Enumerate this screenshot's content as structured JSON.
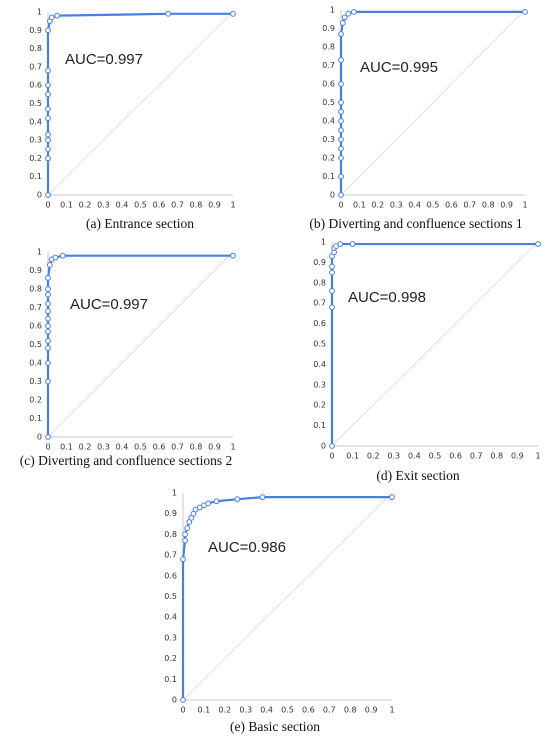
{
  "chart_data": [
    {
      "type": "line",
      "annotation": "AUC=0.997",
      "caption": "(a) Entrance section",
      "x": [
        0,
        0,
        0,
        0,
        0,
        0,
        0,
        0,
        0,
        0,
        0,
        0.01,
        0.02,
        0.05,
        0.65,
        1
      ],
      "series": [
        {
          "color": "#4a7fe0",
          "values": [
            0,
            0.2,
            0.25,
            0.3,
            0.33,
            0.42,
            0.47,
            0.55,
            0.6,
            0.68,
            0.9,
            0.95,
            0.97,
            0.98,
            0.99,
            0.99
          ]
        }
      ],
      "xlim": [
        0,
        1
      ],
      "ylim": [
        0,
        1
      ],
      "xticks": [
        0,
        0.1,
        0.2,
        0.3,
        0.4,
        0.5,
        0.6,
        0.7,
        0.8,
        0.9,
        1
      ],
      "yticks": [
        0,
        0.1,
        0.2,
        0.3,
        0.4,
        0.5,
        0.6,
        0.7,
        0.8,
        0.9,
        1
      ],
      "grid": false
    },
    {
      "type": "line",
      "annotation": "AUC=0.995",
      "caption": "(b) Diverting and confluence sections 1",
      "x": [
        0,
        0,
        0,
        0,
        0,
        0,
        0,
        0,
        0,
        0,
        0,
        0,
        0.01,
        0.02,
        0.04,
        0.07,
        1
      ],
      "series": [
        {
          "color": "#4a7fe0",
          "values": [
            0,
            0.1,
            0.2,
            0.25,
            0.3,
            0.35,
            0.4,
            0.45,
            0.5,
            0.6,
            0.73,
            0.87,
            0.93,
            0.96,
            0.98,
            0.99,
            0.99
          ]
        }
      ],
      "xlim": [
        0,
        1
      ],
      "ylim": [
        0,
        1
      ],
      "xticks": [
        0,
        0.1,
        0.2,
        0.3,
        0.4,
        0.5,
        0.6,
        0.7,
        0.8,
        0.9,
        1
      ],
      "yticks": [
        0,
        0.1,
        0.2,
        0.3,
        0.4,
        0.5,
        0.6,
        0.7,
        0.8,
        0.9,
        1
      ],
      "grid": false
    },
    {
      "type": "line",
      "annotation": "AUC=0.997",
      "caption": "(c) Diverting and confluence sections 2",
      "x": [
        0,
        0,
        0,
        0,
        0,
        0,
        0,
        0,
        0,
        0,
        0,
        0,
        0,
        0.01,
        0.02,
        0.04,
        0.08,
        1
      ],
      "series": [
        {
          "color": "#4a7fe0",
          "values": [
            0,
            0.3,
            0.4,
            0.48,
            0.52,
            0.57,
            0.6,
            0.64,
            0.68,
            0.72,
            0.77,
            0.8,
            0.86,
            0.93,
            0.96,
            0.97,
            0.98,
            0.98
          ]
        }
      ],
      "xlim": [
        0,
        1
      ],
      "ylim": [
        0,
        1
      ],
      "xticks": [
        0,
        0.1,
        0.2,
        0.3,
        0.4,
        0.5,
        0.6,
        0.7,
        0.8,
        0.9,
        1
      ],
      "yticks": [
        0,
        0.1,
        0.2,
        0.3,
        0.4,
        0.5,
        0.6,
        0.7,
        0.8,
        0.9,
        1
      ],
      "grid": false
    },
    {
      "type": "line",
      "annotation": "AUC=0.998",
      "caption": "(d) Exit section",
      "x": [
        0,
        0,
        0,
        0,
        0,
        0,
        0.01,
        0.01,
        0.02,
        0.04,
        0.1,
        1
      ],
      "series": [
        {
          "color": "#4a7fe0",
          "values": [
            0,
            0.68,
            0.76,
            0.85,
            0.88,
            0.93,
            0.95,
            0.97,
            0.98,
            0.99,
            0.99,
            0.99
          ]
        }
      ],
      "xlim": [
        0,
        1
      ],
      "ylim": [
        0,
        1
      ],
      "xticks": [
        0,
        0.1,
        0.2,
        0.3,
        0.4,
        0.5,
        0.6,
        0.7,
        0.8,
        0.9,
        1
      ],
      "yticks": [
        0,
        0.1,
        0.2,
        0.3,
        0.4,
        0.5,
        0.6,
        0.7,
        0.8,
        0.9,
        1
      ],
      "grid": false
    },
    {
      "type": "line",
      "annotation": "AUC=0.986",
      "caption": "(e) Basic section",
      "x": [
        0,
        0,
        0.01,
        0.01,
        0.02,
        0.03,
        0.04,
        0.05,
        0.06,
        0.08,
        0.1,
        0.12,
        0.16,
        0.26,
        0.38,
        1
      ],
      "series": [
        {
          "color": "#4a7fe0",
          "values": [
            0,
            0.68,
            0.77,
            0.8,
            0.83,
            0.86,
            0.88,
            0.9,
            0.92,
            0.93,
            0.94,
            0.95,
            0.96,
            0.97,
            0.98,
            0.98
          ]
        }
      ],
      "xlim": [
        0,
        1
      ],
      "ylim": [
        0,
        1
      ],
      "xticks": [
        0,
        0.1,
        0.2,
        0.3,
        0.4,
        0.5,
        0.6,
        0.7,
        0.8,
        0.9,
        1
      ],
      "yticks": [
        0,
        0.1,
        0.2,
        0.3,
        0.4,
        0.5,
        0.6,
        0.7,
        0.8,
        0.9,
        1
      ],
      "grid": false
    }
  ]
}
